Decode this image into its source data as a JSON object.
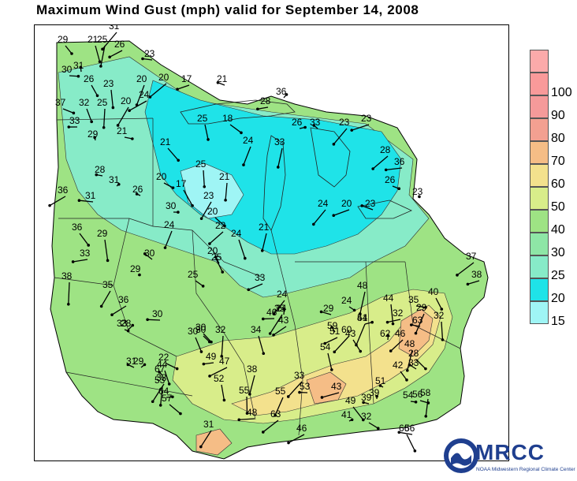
{
  "title": "Maximum Wind Gust (mph) valid for September 14, 2008",
  "legend": {
    "bins": [
      {
        "label": "15",
        "color": "#9ff5f5"
      },
      {
        "label": "20",
        "color": "#1fe3e8"
      },
      {
        "label": "25",
        "color": "#87ebc8"
      },
      {
        "label": "30",
        "color": "#8ee6a6"
      },
      {
        "label": "40",
        "color": "#9ee384"
      },
      {
        "label": "50",
        "color": "#d8ed8a"
      },
      {
        "label": "60",
        "color": "#f3e18d"
      },
      {
        "label": "70",
        "color": "#f5bd86"
      },
      {
        "label": "80",
        "color": "#f3a091"
      },
      {
        "label": "90",
        "color": "#f59a9a"
      },
      {
        "label": "100",
        "color": "#f99a9a"
      },
      {
        "label": "",
        "color": "#fbaaaa"
      }
    ]
  },
  "logo": {
    "text": "MRCC",
    "subtitle": "NOAA Midwestern Regional Climate Center",
    "icon": "noaa-seal-icon"
  },
  "observations": [
    {
      "v": "29"
    },
    {
      "v": "21"
    },
    {
      "v": "25"
    },
    {
      "v": "31"
    },
    {
      "v": "26"
    },
    {
      "v": "23"
    },
    {
      "v": "31"
    },
    {
      "v": "30"
    },
    {
      "v": "26"
    },
    {
      "v": "23"
    },
    {
      "v": "20"
    },
    {
      "v": "20"
    },
    {
      "v": "17"
    },
    {
      "v": "21"
    },
    {
      "v": "36"
    },
    {
      "v": "37"
    },
    {
      "v": "32"
    },
    {
      "v": "25"
    },
    {
      "v": "20"
    },
    {
      "v": "24"
    },
    {
      "v": "28"
    },
    {
      "v": "33"
    },
    {
      "v": "26"
    },
    {
      "v": "18"
    },
    {
      "v": "25"
    },
    {
      "v": "33"
    },
    {
      "v": "23"
    },
    {
      "v": "23"
    },
    {
      "v": "33"
    },
    {
      "v": "29"
    },
    {
      "v": "21"
    },
    {
      "v": "21"
    },
    {
      "v": "25"
    },
    {
      "v": "24"
    },
    {
      "v": "28"
    },
    {
      "v": "36"
    },
    {
      "v": "28"
    },
    {
      "v": "31"
    },
    {
      "v": "20"
    },
    {
      "v": "17"
    },
    {
      "v": "21"
    },
    {
      "v": "23"
    },
    {
      "v": "36"
    },
    {
      "v": "31"
    },
    {
      "v": "26"
    },
    {
      "v": "30"
    },
    {
      "v": "20"
    },
    {
      "v": "24"
    },
    {
      "v": "21"
    },
    {
      "v": "24"
    },
    {
      "v": "20"
    },
    {
      "v": "23"
    },
    {
      "v": "23"
    },
    {
      "v": "26"
    },
    {
      "v": "36"
    },
    {
      "v": "29"
    },
    {
      "v": "24"
    },
    {
      "v": "22"
    },
    {
      "v": "33"
    },
    {
      "v": "30"
    },
    {
      "v": "29"
    },
    {
      "v": "25"
    },
    {
      "v": "20"
    },
    {
      "v": "38"
    },
    {
      "v": "35"
    },
    {
      "v": "36"
    },
    {
      "v": "30"
    },
    {
      "v": "25"
    },
    {
      "v": "33"
    },
    {
      "v": "30"
    },
    {
      "v": "34"
    },
    {
      "v": "48"
    },
    {
      "v": "24"
    },
    {
      "v": "33"
    },
    {
      "v": "29"
    },
    {
      "v": "24"
    },
    {
      "v": "24"
    },
    {
      "v": "43"
    },
    {
      "v": "44"
    },
    {
      "v": "41"
    },
    {
      "v": "46"
    },
    {
      "v": "32"
    },
    {
      "v": "33"
    },
    {
      "v": "28"
    },
    {
      "v": "30"
    },
    {
      "v": "30"
    },
    {
      "v": "32"
    },
    {
      "v": "35"
    },
    {
      "v": "43"
    },
    {
      "v": "46"
    },
    {
      "v": "59"
    },
    {
      "v": "54"
    },
    {
      "v": "42"
    },
    {
      "v": "54"
    },
    {
      "v": "48"
    },
    {
      "v": "60"
    },
    {
      "v": "51"
    },
    {
      "v": "63"
    },
    {
      "v": "62"
    },
    {
      "v": "35"
    },
    {
      "v": "40"
    },
    {
      "v": "32"
    },
    {
      "v": "29"
    },
    {
      "v": "37"
    },
    {
      "v": "38"
    },
    {
      "v": "31"
    },
    {
      "v": "29"
    },
    {
      "v": "22"
    },
    {
      "v": "44"
    },
    {
      "v": "53"
    },
    {
      "v": "38"
    },
    {
      "v": "47"
    },
    {
      "v": "49"
    },
    {
      "v": "67"
    },
    {
      "v": "64"
    },
    {
      "v": "57"
    },
    {
      "v": "52"
    },
    {
      "v": "38"
    },
    {
      "v": "33"
    },
    {
      "v": "43"
    },
    {
      "v": "53"
    },
    {
      "v": "39"
    },
    {
      "v": "56"
    },
    {
      "v": "49"
    },
    {
      "v": "55"
    },
    {
      "v": "55"
    },
    {
      "v": "63"
    },
    {
      "v": "48"
    },
    {
      "v": "39"
    },
    {
      "v": "41"
    },
    {
      "v": "32"
    },
    {
      "v": "66"
    },
    {
      "v": "58"
    },
    {
      "v": "31"
    },
    {
      "v": "46"
    },
    {
      "v": "56"
    },
    {
      "v": "51"
    },
    {
      "v": "54"
    },
    {
      "v": "28"
    }
  ]
}
